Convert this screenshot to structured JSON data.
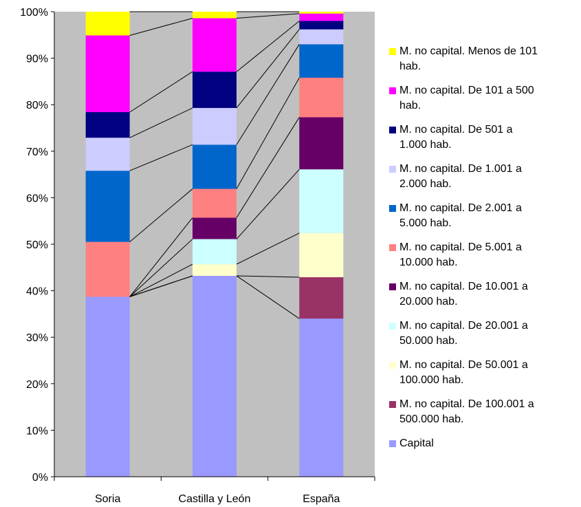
{
  "chart_data": {
    "type": "bar",
    "stacked": true,
    "percent": true,
    "categories": [
      "Soria",
      "Castilla y León",
      "España"
    ],
    "y_ticks": [
      "0%",
      "10%",
      "20%",
      "30%",
      "40%",
      "50%",
      "60%",
      "70%",
      "80%",
      "90%",
      "100%"
    ],
    "ylim": [
      0,
      100
    ],
    "grid": false,
    "plot_background": "#c0c0c0",
    "legend_position": "right",
    "series_lines": true,
    "series": [
      {
        "name": "Capital",
        "color": "#9999ff",
        "values": [
          38.7,
          43.2,
          34.0
        ]
      },
      {
        "name": "M. no capital. De 100.001 a 500.000 hab.",
        "color": "#993366",
        "values": [
          0,
          0,
          8.9
        ]
      },
      {
        "name": "M. no capital. De 50.001 a 100.000 hab.",
        "color": "#ffffcc",
        "values": [
          0,
          2.5,
          9.5
        ]
      },
      {
        "name": "M. no capital. De 20.001 a 50.000 hab.",
        "color": "#ccffff",
        "values": [
          0,
          5.4,
          13.7
        ]
      },
      {
        "name": "M. no capital. De 10.001 a 20.000 hab.",
        "color": "#660066",
        "values": [
          0,
          4.6,
          11.2
        ]
      },
      {
        "name": "M. no capital. De 5.001 a 10.000 hab.",
        "color": "#ff8080",
        "values": [
          11.8,
          6.2,
          8.5
        ]
      },
      {
        "name": "M. no capital. De 2.001 a 5.000 hab.",
        "color": "#0066cc",
        "values": [
          15.3,
          9.5,
          7.2
        ]
      },
      {
        "name": "M. no capital. De 1.001 a 2.000 hab.",
        "color": "#ccccff",
        "values": [
          7.1,
          7.9,
          3.2
        ]
      },
      {
        "name": "M. no capital. De 501 a 1.000 hab.",
        "color": "#000080",
        "values": [
          5.5,
          7.8,
          1.8
        ]
      },
      {
        "name": "M. no capital. De 101 a 500 hab.",
        "color": "#ff00ff",
        "values": [
          16.5,
          11.5,
          1.6
        ]
      },
      {
        "name": "M. no capital. Menos de 101 hab.",
        "color": "#ffff00",
        "values": [
          5.1,
          1.4,
          0.4
        ]
      }
    ],
    "legend": [
      {
        "lines": [
          "M. no capital. Menos de 101",
          "hab."
        ],
        "color": "#ffff00"
      },
      {
        "lines": [
          "M. no capital. De 101 a 500",
          "hab."
        ],
        "color": "#ff00ff"
      },
      {
        "lines": [
          "M. no capital. De 501 a",
          "1.000 hab."
        ],
        "color": "#000080"
      },
      {
        "lines": [
          "M. no capital. De 1.001 a",
          "2.000 hab."
        ],
        "color": "#ccccff"
      },
      {
        "lines": [
          "M. no capital. De 2.001 a",
          "5.000 hab."
        ],
        "color": "#0066cc"
      },
      {
        "lines": [
          "M. no capital. De 5.001 a",
          "10.000 hab."
        ],
        "color": "#ff8080"
      },
      {
        "lines": [
          "M. no capital. De 10.001 a",
          "20.000 hab."
        ],
        "color": "#660066"
      },
      {
        "lines": [
          "M. no capital. De 20.001 a",
          "50.000 hab."
        ],
        "color": "#ccffff"
      },
      {
        "lines": [
          "M. no capital. De 50.001 a",
          "100.000 hab."
        ],
        "color": "#ffffcc"
      },
      {
        "lines": [
          "M. no capital. De 100.001 a",
          "500.000 hab."
        ],
        "color": "#993366"
      },
      {
        "lines": [
          "Capital"
        ],
        "color": "#9999ff"
      }
    ]
  }
}
